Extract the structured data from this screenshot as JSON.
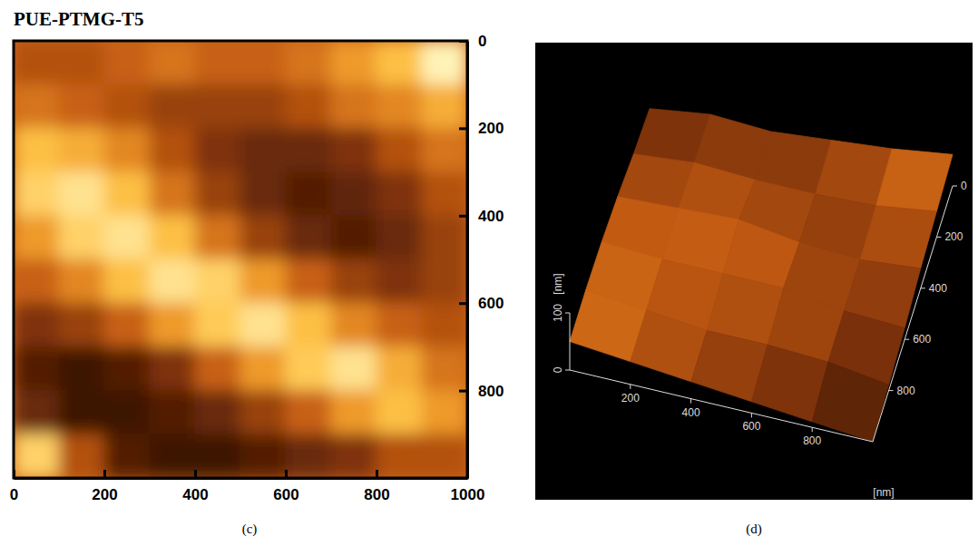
{
  "chart_data": [
    {
      "type": "heatmap",
      "title": "PUE-PTMG-T5",
      "panel_label": "(c)",
      "xlim": [
        0,
        1000
      ],
      "ylim": [
        0,
        1000
      ],
      "xticks": [
        0,
        200,
        400,
        600,
        800,
        1000
      ],
      "yticks": [
        0,
        200,
        400,
        600,
        800
      ],
      "cells": [
        [
          55,
          55,
          60,
          65,
          60,
          60,
          65,
          75,
          85,
          100
        ],
        [
          65,
          60,
          55,
          50,
          50,
          50,
          55,
          65,
          70,
          80
        ],
        [
          85,
          80,
          70,
          55,
          45,
          40,
          40,
          45,
          55,
          65
        ],
        [
          90,
          95,
          85,
          65,
          50,
          40,
          35,
          38,
          45,
          55
        ],
        [
          75,
          90,
          95,
          85,
          65,
          50,
          40,
          35,
          40,
          50
        ],
        [
          60,
          70,
          85,
          95,
          90,
          75,
          60,
          50,
          45,
          50
        ],
        [
          45,
          50,
          60,
          75,
          88,
          95,
          85,
          70,
          60,
          55
        ],
        [
          35,
          30,
          35,
          45,
          60,
          75,
          88,
          95,
          80,
          65
        ],
        [
          40,
          30,
          30,
          35,
          40,
          50,
          60,
          75,
          85,
          75
        ],
        [
          90,
          55,
          35,
          30,
          30,
          35,
          40,
          45,
          55,
          55
        ]
      ]
    },
    {
      "type": "surface",
      "panel_label": "(d)",
      "xlim": [
        0,
        1000
      ],
      "ylim": [
        0,
        1000
      ],
      "zlim": [
        0,
        100
      ],
      "xticks": [
        200,
        400,
        600,
        800
      ],
      "yticks": [
        0,
        200,
        400,
        600,
        800
      ],
      "zticks": [
        0,
        100
      ],
      "x_label": "[nm]",
      "z_label": "[nm]",
      "x": [
        0,
        200,
        400,
        600,
        800,
        1000
      ],
      "y": [
        0,
        200,
        400,
        600,
        800,
        1000
      ],
      "z": [
        [
          10,
          25,
          20,
          30,
          40,
          55
        ],
        [
          20,
          30,
          25,
          25,
          30,
          45
        ],
        [
          35,
          40,
          45,
          30,
          25,
          35
        ],
        [
          45,
          40,
          40,
          40,
          25,
          20
        ],
        [
          50,
          40,
          30,
          30,
          25,
          10
        ],
        [
          50,
          40,
          30,
          20,
          10,
          0
        ]
      ]
    }
  ]
}
